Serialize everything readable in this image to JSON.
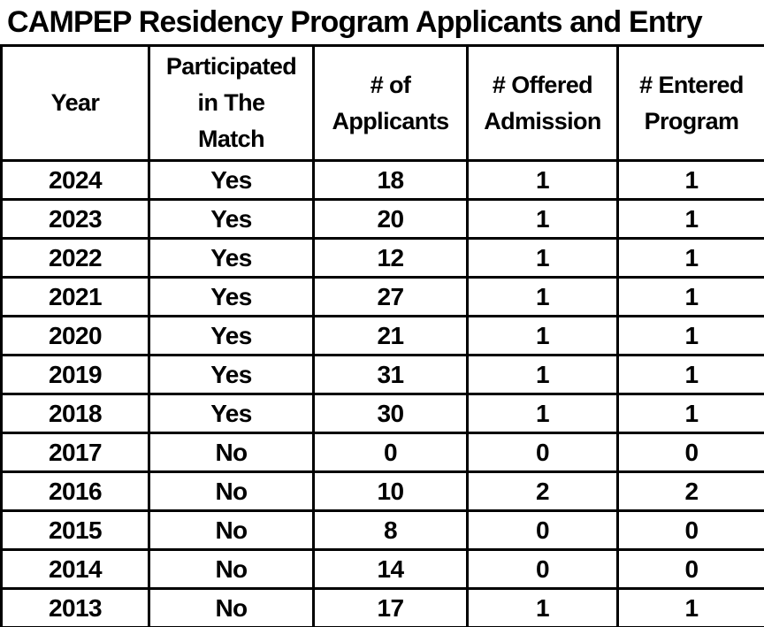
{
  "title": "CAMPEP Residency Program Applicants and Entry",
  "colors": {
    "text": "#000000",
    "border": "#000000",
    "background": "#ffffff"
  },
  "table": {
    "columns": [
      {
        "label": "Year"
      },
      {
        "label": "Participated\nin The\nMatch"
      },
      {
        "label": "# of\nApplicants"
      },
      {
        "label": "# Offered\nAdmission"
      },
      {
        "label": "# Entered\nProgram"
      }
    ],
    "rows": [
      [
        "2024",
        "Yes",
        "18",
        "1",
        "1"
      ],
      [
        "2023",
        "Yes",
        "20",
        "1",
        "1"
      ],
      [
        "2022",
        "Yes",
        "12",
        "1",
        "1"
      ],
      [
        "2021",
        "Yes",
        "27",
        "1",
        "1"
      ],
      [
        "2020",
        "Yes",
        "21",
        "1",
        "1"
      ],
      [
        "2019",
        "Yes",
        "31",
        "1",
        "1"
      ],
      [
        "2018",
        "Yes",
        "30",
        "1",
        "1"
      ],
      [
        "2017",
        "No",
        "0",
        "0",
        "0"
      ],
      [
        "2016",
        "No",
        "10",
        "2",
        "2"
      ],
      [
        "2015",
        "No",
        "8",
        "0",
        "0"
      ],
      [
        "2014",
        "No",
        "14",
        "0",
        "0"
      ],
      [
        "2013",
        "No",
        "17",
        "1",
        "1"
      ]
    ]
  }
}
